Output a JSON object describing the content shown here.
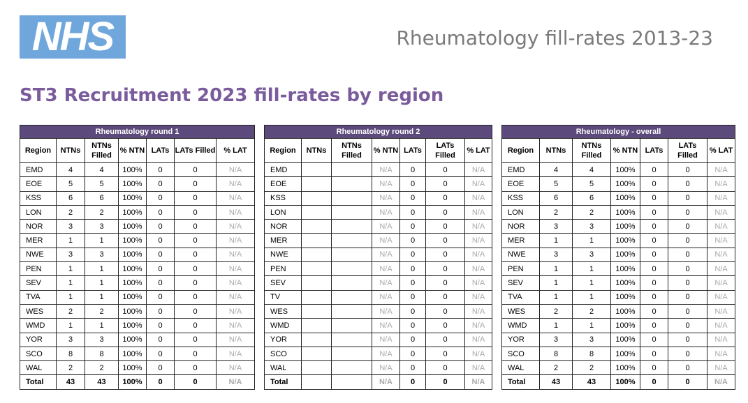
{
  "logo": "NHS",
  "page_title": "Rheumatology fill-rates 2013-23",
  "heading": "ST3 Recruitment 2023 fill-rates by region",
  "columns": [
    "Region",
    "NTNs",
    "NTNs Filled",
    "% NTN",
    "LATs",
    "LATs Filled",
    "% LAT"
  ],
  "tables": [
    {
      "title": "Rheumatology round 1",
      "rows": [
        [
          "EMD",
          "4",
          "4",
          "100%",
          "0",
          "0",
          "N/A"
        ],
        [
          "EOE",
          "5",
          "5",
          "100%",
          "0",
          "0",
          "N/A"
        ],
        [
          "KSS",
          "6",
          "6",
          "100%",
          "0",
          "0",
          "N/A"
        ],
        [
          "LON",
          "2",
          "2",
          "100%",
          "0",
          "0",
          "N/A"
        ],
        [
          "NOR",
          "3",
          "3",
          "100%",
          "0",
          "0",
          "N/A"
        ],
        [
          "MER",
          "1",
          "1",
          "100%",
          "0",
          "0",
          "N/A"
        ],
        [
          "NWE",
          "3",
          "3",
          "100%",
          "0",
          "0",
          "N/A"
        ],
        [
          "PEN",
          "1",
          "1",
          "100%",
          "0",
          "0",
          "N/A"
        ],
        [
          "SEV",
          "1",
          "1",
          "100%",
          "0",
          "0",
          "N/A"
        ],
        [
          "TVA",
          "1",
          "1",
          "100%",
          "0",
          "0",
          "N/A"
        ],
        [
          "WES",
          "2",
          "2",
          "100%",
          "0",
          "0",
          "N/A"
        ],
        [
          "WMD",
          "1",
          "1",
          "100%",
          "0",
          "0",
          "N/A"
        ],
        [
          "YOR",
          "3",
          "3",
          "100%",
          "0",
          "0",
          "N/A"
        ],
        [
          "SCO",
          "8",
          "8",
          "100%",
          "0",
          "0",
          "N/A"
        ],
        [
          "WAL",
          "2",
          "2",
          "100%",
          "0",
          "0",
          "N/A"
        ]
      ],
      "total": [
        "Total",
        "43",
        "43",
        "100%",
        "0",
        "0",
        "N/A"
      ]
    },
    {
      "title": "Rheumatology round 2",
      "rows": [
        [
          "EMD",
          "",
          "",
          "N/A",
          "0",
          "0",
          "N/A"
        ],
        [
          "EOE",
          "",
          "",
          "N/A",
          "0",
          "0",
          "N/A"
        ],
        [
          "KSS",
          "",
          "",
          "N/A",
          "0",
          "0",
          "N/A"
        ],
        [
          "LON",
          "",
          "",
          "N/A",
          "0",
          "0",
          "N/A"
        ],
        [
          "NOR",
          "",
          "",
          "N/A",
          "0",
          "0",
          "N/A"
        ],
        [
          "MER",
          "",
          "",
          "N/A",
          "0",
          "0",
          "N/A"
        ],
        [
          "NWE",
          "",
          "",
          "N/A",
          "0",
          "0",
          "N/A"
        ],
        [
          "PEN",
          "",
          "",
          "N/A",
          "0",
          "0",
          "N/A"
        ],
        [
          "SEV",
          "",
          "",
          "N/A",
          "0",
          "0",
          "N/A"
        ],
        [
          "TV",
          "",
          "",
          "N/A",
          "0",
          "0",
          "N/A"
        ],
        [
          "WES",
          "",
          "",
          "N/A",
          "0",
          "0",
          "N/A"
        ],
        [
          "WMD",
          "",
          "",
          "N/A",
          "0",
          "0",
          "N/A"
        ],
        [
          "YOR",
          "",
          "",
          "N/A",
          "0",
          "0",
          "N/A"
        ],
        [
          "SCO",
          "",
          "",
          "N/A",
          "0",
          "0",
          "N/A"
        ],
        [
          "WAL",
          "",
          "",
          "N/A",
          "0",
          "0",
          "N/A"
        ]
      ],
      "total": [
        "Total",
        "",
        "",
        "N/A",
        "0",
        "0",
        "N/A"
      ]
    },
    {
      "title": "Rheumatology - overall",
      "rows": [
        [
          "EMD",
          "4",
          "4",
          "100%",
          "0",
          "0",
          "N/A"
        ],
        [
          "EOE",
          "5",
          "5",
          "100%",
          "0",
          "0",
          "N/A"
        ],
        [
          "KSS",
          "6",
          "6",
          "100%",
          "0",
          "0",
          "N/A"
        ],
        [
          "LON",
          "2",
          "2",
          "100%",
          "0",
          "0",
          "N/A"
        ],
        [
          "NOR",
          "3",
          "3",
          "100%",
          "0",
          "0",
          "N/A"
        ],
        [
          "MER",
          "1",
          "1",
          "100%",
          "0",
          "0",
          "N/A"
        ],
        [
          "NWE",
          "3",
          "3",
          "100%",
          "0",
          "0",
          "N/A"
        ],
        [
          "PEN",
          "1",
          "1",
          "100%",
          "0",
          "0",
          "N/A"
        ],
        [
          "SEV",
          "1",
          "1",
          "100%",
          "0",
          "0",
          "N/A"
        ],
        [
          "TVA",
          "1",
          "1",
          "100%",
          "0",
          "0",
          "N/A"
        ],
        [
          "WES",
          "2",
          "2",
          "100%",
          "0",
          "0",
          "N/A"
        ],
        [
          "WMD",
          "1",
          "1",
          "100%",
          "0",
          "0",
          "N/A"
        ],
        [
          "YOR",
          "3",
          "3",
          "100%",
          "0",
          "0",
          "N/A"
        ],
        [
          "SCO",
          "8",
          "8",
          "100%",
          "0",
          "0",
          "N/A"
        ],
        [
          "WAL",
          "2",
          "2",
          "100%",
          "0",
          "0",
          "N/A"
        ]
      ],
      "total": [
        "Total",
        "43",
        "43",
        "100%",
        "0",
        "0",
        "N/A"
      ]
    }
  ],
  "colors": {
    "header_bg": "#5d4a7c",
    "heading": "#7a5b9c",
    "logo_bg": "#6fa6db",
    "na_text": "#aaaaaa",
    "title_text": "#7a7a7a"
  }
}
